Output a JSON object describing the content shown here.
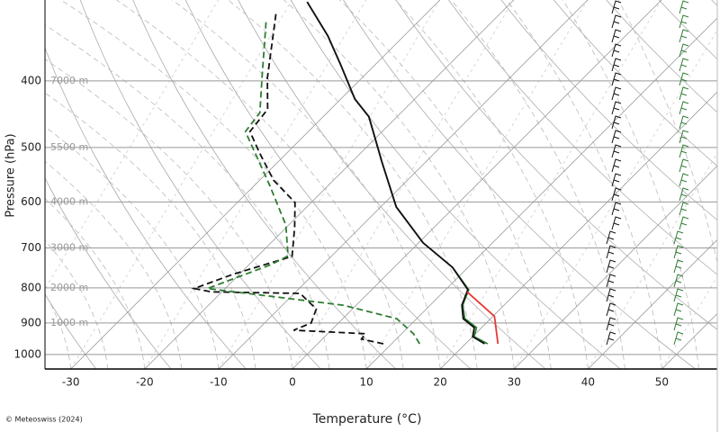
{
  "chart_data": {
    "type": "skewt",
    "x_label": "Temperature (°C)",
    "y_label": "Pressure (hPa)",
    "credit": "© Meteoswiss (2024)",
    "xlim": [
      -33.5,
      57.5
    ],
    "xticks": [
      -30,
      -20,
      -10,
      0,
      10,
      20,
      30,
      40,
      50
    ],
    "ylim": [
      1050,
      305
    ],
    "yticks": [
      400,
      500,
      600,
      700,
      800,
      900,
      1000
    ],
    "log_y": true,
    "grid": true,
    "height_labels": [
      {
        "pressure": 400,
        "label": "7000 m"
      },
      {
        "pressure": 500,
        "label": "5500 m"
      },
      {
        "pressure": 600,
        "label": "4000 m"
      },
      {
        "pressure": 700,
        "label": "3000 m"
      },
      {
        "pressure": 800,
        "label": "2000 m"
      },
      {
        "pressure": 900,
        "label": "1000 m"
      }
    ],
    "series": [
      {
        "color": "#2e7d32",
        "dash": false,
        "x": [
          23.0,
          20.2,
          19.3,
          16.5,
          14.4,
          13.1,
          7.9,
          0.6,
          -7.9,
          -15.9,
          -23.8,
          -28.1,
          -34.8,
          -40.3,
          -47.7
        ],
        "y": [
          965,
          942,
          914,
          887,
          848,
          805,
          747,
          688,
          610,
          525,
          451,
          425,
          378,
          344,
          307
        ]
      },
      {
        "color": "#111111",
        "dash": false,
        "x": [
          22.6,
          20.0,
          19.0,
          16.3,
          14.3,
          13.0,
          7.9,
          0.6,
          -7.9,
          -15.9,
          -23.8,
          -28.1,
          -34.8,
          -40.3,
          -47.7
        ],
        "y": [
          965,
          942,
          914,
          887,
          848,
          805,
          747,
          688,
          610,
          525,
          451,
          425,
          378,
          344,
          307
        ]
      },
      {
        "color": "#111111",
        "dash": true,
        "x": [
          8.9,
          5.3,
          5.1,
          -5.1,
          -3.7,
          -4.9,
          -9.2,
          -21.4,
          -24.2,
          -20.8,
          -15.3,
          -18.9,
          -22.2,
          -28.1,
          -33.6,
          -37.9,
          -38.5,
          -42.8,
          -50.7
        ],
        "y": [
          965,
          950,
          933,
          922,
          900,
          859,
          815,
          811,
          802,
          764,
          720,
          653,
          601,
          558,
          510,
          474,
          440,
          396,
          316
        ]
      },
      {
        "color": "#2e7d32",
        "dash": true,
        "x": [
          13.8,
          11.6,
          7.3,
          -1.8,
          -22.4,
          -17.1,
          -15.9,
          -20.4,
          -28.1,
          -38.5,
          -39.1,
          -44.0,
          -50.7
        ],
        "y": [
          965,
          933,
          887,
          848,
          802,
          741,
          719,
          648,
          566,
          474,
          445,
          391,
          327
        ]
      },
      {
        "color": "#e53935",
        "dash": false,
        "x": [
          13.2,
          20.2,
          24.4
        ],
        "y": [
          811,
          880,
          965
        ]
      }
    ]
  }
}
